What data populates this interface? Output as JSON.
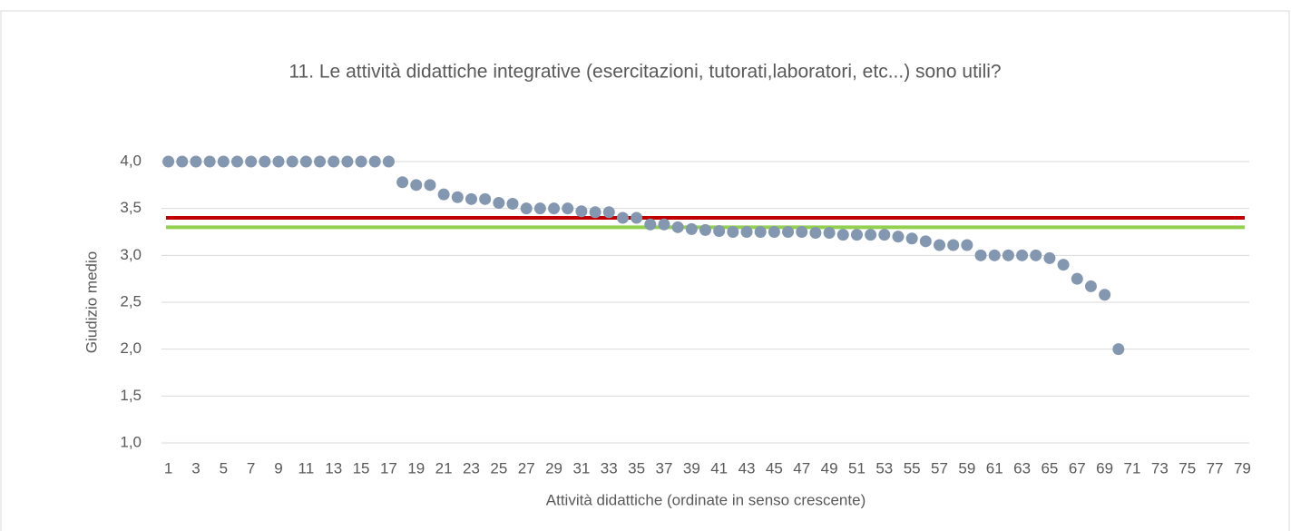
{
  "chart_data": {
    "type": "scatter",
    "title": "11. Le attività didattiche integrative (esercitazioni, tutorati,laboratori, etc...) sono utili?",
    "x_label": "Attività didattiche (ordinate in senso crescente)",
    "y_label": "Giudizio medio",
    "categories": [
      1,
      null,
      3,
      null,
      5,
      null,
      7,
      null,
      9,
      null,
      11,
      null,
      13,
      null,
      15,
      null,
      17,
      null,
      19,
      null,
      21,
      null,
      23,
      null,
      25,
      null,
      27,
      null,
      29,
      null,
      31,
      null,
      33,
      null,
      35,
      null,
      37,
      null,
      39,
      null,
      41,
      null,
      43,
      null,
      45,
      null,
      47,
      null,
      49,
      null,
      51,
      null,
      53,
      null,
      55,
      null,
      57,
      null,
      59,
      null,
      61,
      null,
      63,
      null,
      65,
      null,
      67,
      null,
      69,
      null,
      71,
      null,
      73,
      null,
      75,
      null,
      77,
      null,
      79
    ],
    "series": [
      {
        "color": "#8497b0",
        "values": [
          4,
          4,
          4,
          4,
          4,
          4,
          4,
          4,
          4,
          4,
          4,
          4,
          4,
          4,
          4,
          4,
          4,
          3.78,
          3.75,
          3.75,
          3.65,
          3.62,
          3.6,
          3.6,
          3.56,
          3.55,
          3.5,
          3.5,
          3.5,
          3.5,
          3.47,
          3.46,
          3.46,
          3.4,
          3.4,
          3.33,
          3.33,
          3.3,
          3.28,
          3.27,
          3.26,
          3.25,
          3.25,
          3.25,
          3.25,
          3.25,
          3.25,
          3.24,
          3.24,
          3.22,
          3.22,
          3.22,
          3.22,
          3.2,
          3.18,
          3.15,
          3.11,
          3.11,
          3.11,
          3,
          3,
          3,
          3,
          3,
          2.97,
          2.9,
          2.75,
          2.67,
          2.58,
          2,
          null,
          null,
          null,
          null,
          null,
          null,
          null,
          null,
          null
        ]
      }
    ],
    "hlines": [
      {
        "value": 3.4,
        "color": "#c00000"
      },
      {
        "value": 3.3,
        "color": "#92d050"
      }
    ],
    "ylim": [
      1,
      4
    ],
    "yticks": [
      {
        "value": 1,
        "label": "1,0"
      },
      {
        "value": 1.5,
        "label": "1,5"
      },
      {
        "value": 2,
        "label": "2,0"
      },
      {
        "value": 2.5,
        "label": "2,5"
      },
      {
        "value": 3,
        "label": "3,0"
      },
      {
        "value": 3.5,
        "label": "3,5"
      },
      {
        "value": 4,
        "label": "4,0"
      }
    ],
    "grid": true
  }
}
